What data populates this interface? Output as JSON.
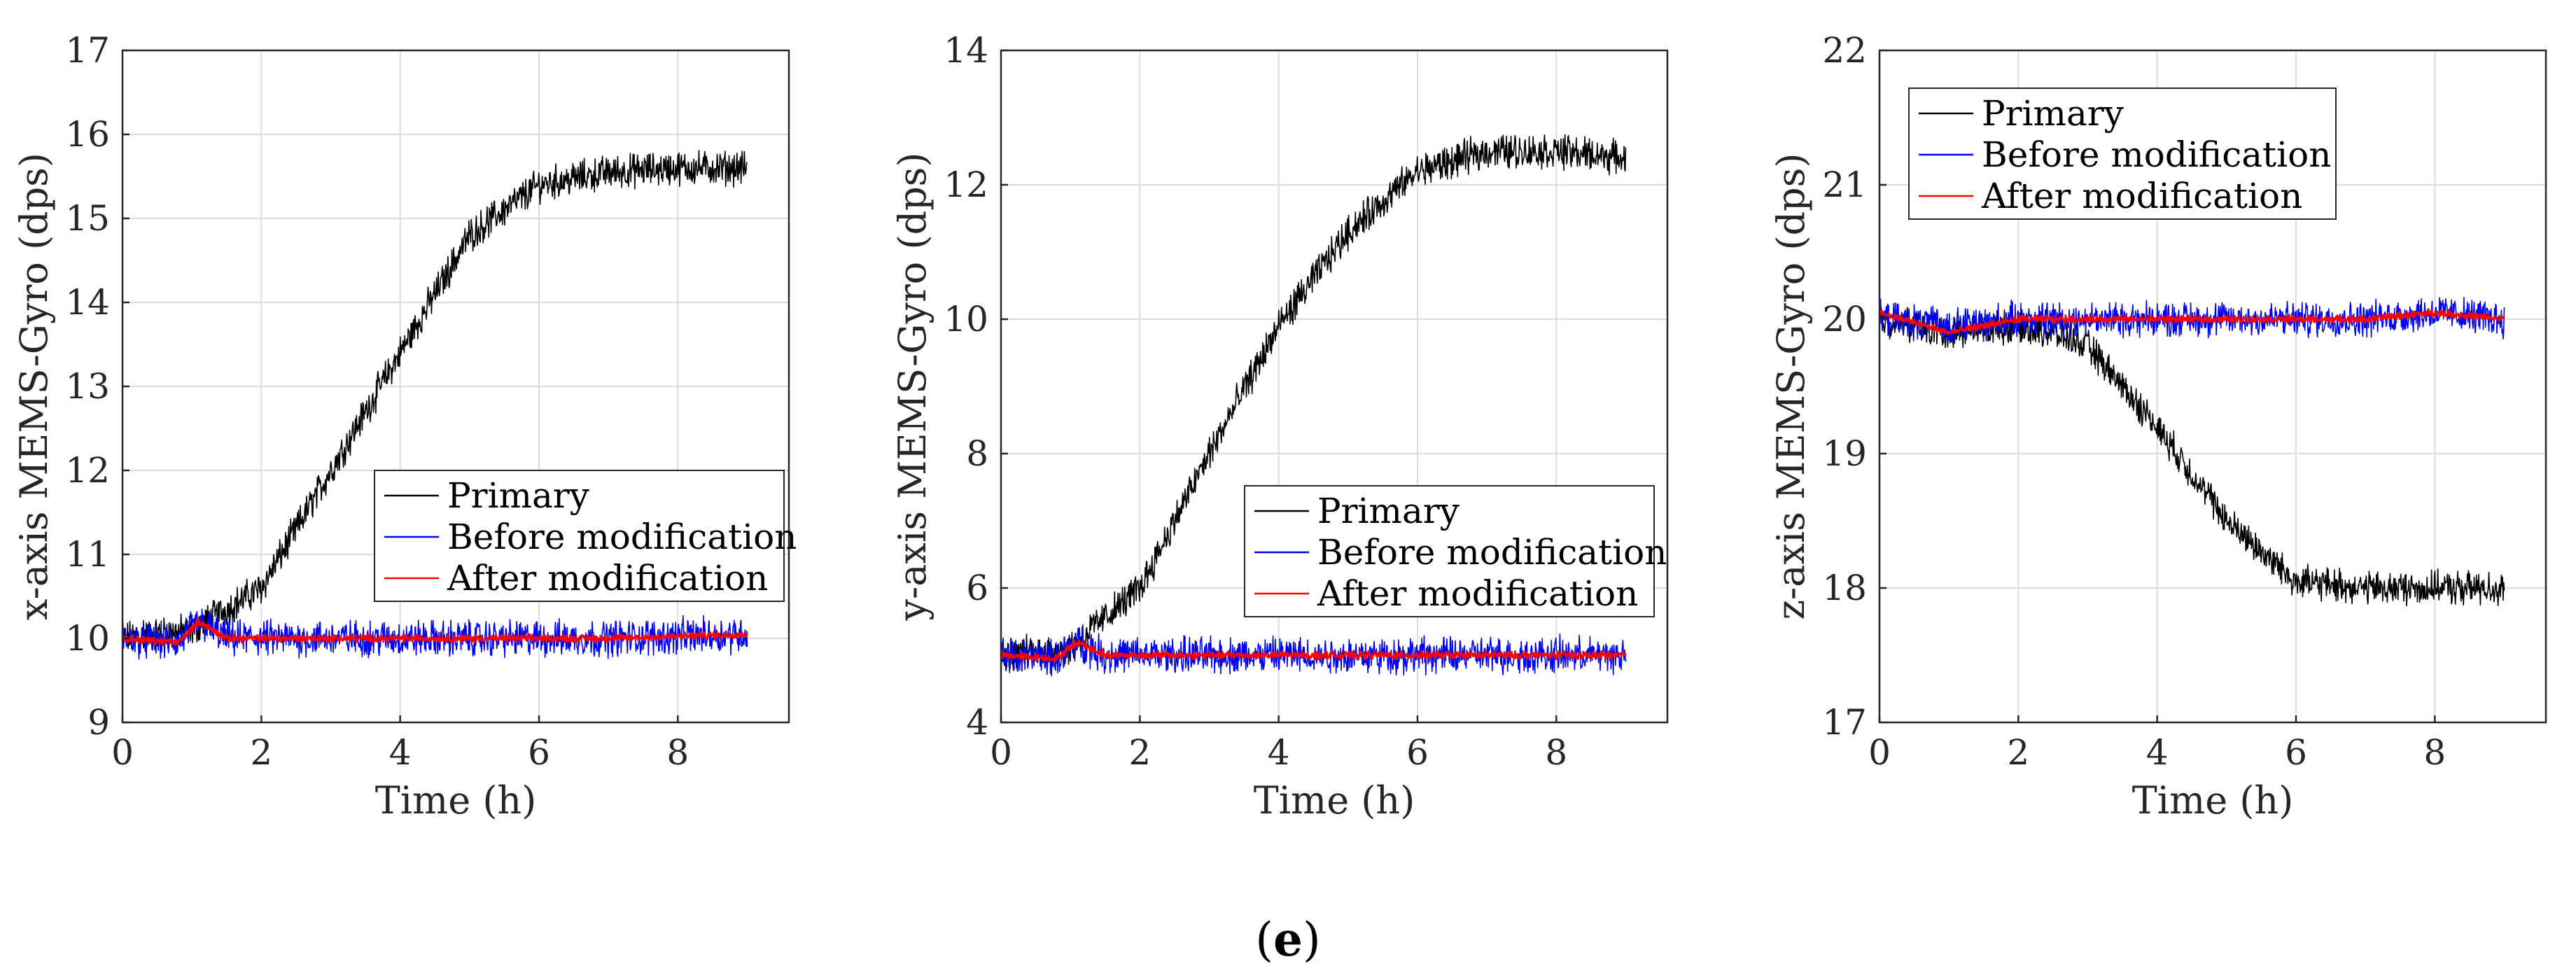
{
  "caption_label": "e",
  "caption_open": "(",
  "caption_close": ")",
  "colors": {
    "primary": "#000000",
    "before": "#0000ff",
    "after": "#ff0000"
  },
  "chart_data": [
    {
      "type": "line",
      "title": "",
      "xlabel": "Time (h)",
      "ylabel": "x-axis MEMS-Gyro (dps)",
      "xlim": [
        0,
        9.6
      ],
      "ylim": [
        9,
        17
      ],
      "xticks": [
        "0",
        "2",
        "4",
        "6",
        "8"
      ],
      "yticks": [
        "9",
        "10",
        "11",
        "12",
        "13",
        "14",
        "15",
        "16",
        "17"
      ],
      "grid": true,
      "legend_position": "center-right",
      "legend": [
        "Primary",
        "Before modification",
        "After modification"
      ],
      "series": [
        {
          "name": "Primary",
          "x": [
            0,
            1,
            1.2,
            2,
            3,
            4,
            5,
            6,
            7,
            8,
            9
          ],
          "values": [
            10,
            10.1,
            10.2,
            10.6,
            12.0,
            13.4,
            14.8,
            15.4,
            15.55,
            15.6,
            15.6
          ]
        },
        {
          "name": "Before modification",
          "x": [
            0,
            0.8,
            1.1,
            1.5,
            3,
            5,
            7,
            9
          ],
          "values": [
            10,
            9.95,
            10.2,
            10.0,
            10.0,
            10.0,
            10.0,
            10.05
          ]
        },
        {
          "name": "After modification",
          "x": [
            0,
            0.8,
            1.1,
            1.5,
            3,
            5,
            7,
            9
          ],
          "values": [
            10,
            9.95,
            10.2,
            10.0,
            10.0,
            10.0,
            10.0,
            10.05
          ]
        }
      ]
    },
    {
      "type": "line",
      "title": "",
      "xlabel": "Time (h)",
      "ylabel": "y-axis MEMS-Gyro (dps)",
      "xlim": [
        0,
        9.6
      ],
      "ylim": [
        4,
        14
      ],
      "xticks": [
        "0",
        "2",
        "4",
        "6",
        "8"
      ],
      "yticks": [
        "4",
        "6",
        "8",
        "10",
        "12",
        "14"
      ],
      "grid": true,
      "legend_position": "center-right",
      "legend": [
        "Primary",
        "Before modification",
        "After modification"
      ],
      "series": [
        {
          "name": "Primary",
          "x": [
            0,
            1,
            1.2,
            2,
            3,
            4,
            5,
            6,
            7,
            8,
            9
          ],
          "values": [
            5.0,
            5.1,
            5.3,
            6.0,
            8.0,
            9.9,
            11.3,
            12.2,
            12.5,
            12.5,
            12.4
          ]
        },
        {
          "name": "Before modification",
          "x": [
            0,
            0.8,
            1.1,
            1.5,
            3,
            5,
            7,
            9
          ],
          "values": [
            5.0,
            4.95,
            5.2,
            5.0,
            5.0,
            5.0,
            5.0,
            5.0
          ]
        },
        {
          "name": "After modification",
          "x": [
            0,
            0.8,
            1.1,
            1.5,
            3,
            5,
            7,
            9
          ],
          "values": [
            5.0,
            4.95,
            5.2,
            5.0,
            5.0,
            5.0,
            5.0,
            5.0
          ]
        }
      ]
    },
    {
      "type": "line",
      "title": "",
      "xlabel": "Time (h)",
      "ylabel": "z-axis MEMS-Gyro (dps)",
      "xlim": [
        0,
        9.6
      ],
      "ylim": [
        17,
        22
      ],
      "xticks": [
        "0",
        "2",
        "4",
        "6",
        "8"
      ],
      "yticks": [
        "17",
        "18",
        "19",
        "20",
        "21",
        "22"
      ],
      "grid": true,
      "legend_position": "top-left",
      "legend": [
        "Primary",
        "Before modification",
        "After modification"
      ],
      "series": [
        {
          "name": "Primary",
          "x": [
            0,
            1,
            2,
            2.5,
            3,
            4,
            5,
            6,
            7,
            8,
            9
          ],
          "values": [
            20.0,
            19.9,
            19.95,
            19.9,
            19.8,
            19.2,
            18.5,
            18.05,
            18.0,
            18.0,
            18.0
          ]
        },
        {
          "name": "Before modification",
          "x": [
            0,
            1,
            2,
            3,
            4,
            5,
            6,
            7,
            8,
            9
          ],
          "values": [
            20.0,
            19.95,
            20.0,
            20.0,
            20.0,
            20.0,
            20.0,
            20.0,
            20.05,
            20.0
          ]
        },
        {
          "name": "After modification",
          "x": [
            0,
            1,
            2,
            3,
            4,
            5,
            6,
            7,
            8,
            9
          ],
          "values": [
            20.05,
            19.9,
            20.0,
            20.0,
            20.0,
            20.0,
            20.0,
            20.0,
            20.05,
            20.0
          ]
        }
      ]
    }
  ]
}
